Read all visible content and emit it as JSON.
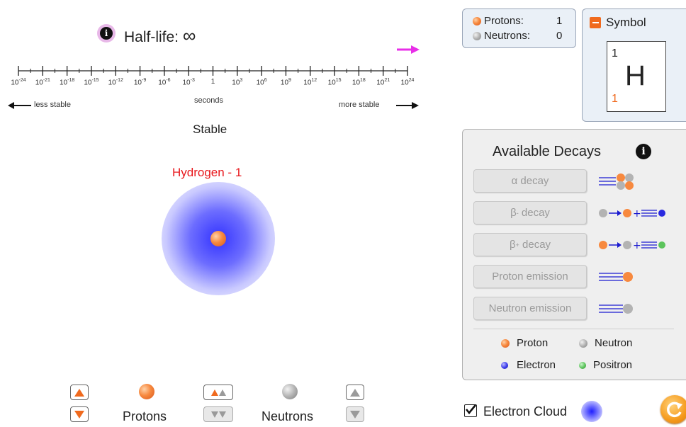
{
  "halflife": {
    "label": "Half-life:",
    "value": "∞",
    "scale": {
      "ticks": [
        {
          "base": "10",
          "exp": "-24"
        },
        {
          "base": "10",
          "exp": "-21"
        },
        {
          "base": "10",
          "exp": "-18"
        },
        {
          "base": "10",
          "exp": "-15"
        },
        {
          "base": "10",
          "exp": "-12"
        },
        {
          "base": "10",
          "exp": "-9"
        },
        {
          "base": "10",
          "exp": "-6"
        },
        {
          "base": "10",
          "exp": "-3"
        },
        {
          "base": "1",
          "exp": ""
        },
        {
          "base": "10",
          "exp": "3"
        },
        {
          "base": "10",
          "exp": "6"
        },
        {
          "base": "10",
          "exp": "9"
        },
        {
          "base": "10",
          "exp": "12"
        },
        {
          "base": "10",
          "exp": "15"
        },
        {
          "base": "10",
          "exp": "18"
        },
        {
          "base": "10",
          "exp": "21"
        },
        {
          "base": "10",
          "exp": "24"
        }
      ],
      "unit_label": "seconds",
      "less_stable": "less stable",
      "more_stable": "more stable"
    },
    "status": "Stable"
  },
  "atom": {
    "name": "Hydrogen - 1"
  },
  "counts": {
    "protons_label": "Protons:",
    "protons_value": "1",
    "neutrons_label": "Neutrons:",
    "neutrons_value": "0"
  },
  "symbol": {
    "title": "Symbol",
    "mass_number": "1",
    "element": "H",
    "atomic_number": "1"
  },
  "decays": {
    "title": "Available Decays",
    "alpha": {
      "base": "α decay"
    },
    "beta_minus": {
      "base": "β",
      "sup": "-",
      "rest": " decay"
    },
    "beta_plus": {
      "base": "β",
      "sup": "+",
      "rest": " decay"
    },
    "proton_emission": "Proton emission",
    "neutron_emission": "Neutron emission",
    "legend": {
      "proton": "Proton",
      "neutron": "Neutron",
      "electron": "Electron",
      "positron": "Positron"
    }
  },
  "controls": {
    "protons_label": "Protons",
    "neutrons_label": "Neutrons",
    "electron_cloud_label": "Electron Cloud",
    "electron_cloud_checked": true
  },
  "colors": {
    "accent_orange": "#f06a1e",
    "element_red": "#e8161b",
    "arrow_magenta": "#e82ee8",
    "cloud_blue": "#2a2aff"
  }
}
